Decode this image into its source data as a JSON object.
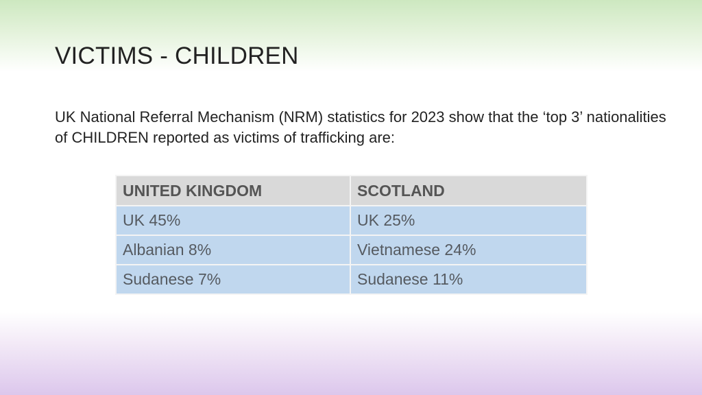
{
  "slide": {
    "title": "VICTIMS - CHILDREN",
    "body": "UK National Referral Mechanism (NRM) statistics for 2023 show that the ‘top 3’ nationalities of CHILDREN reported as victims of trafficking are:"
  },
  "table": {
    "headers": [
      "UNITED KINGDOM",
      "SCOTLAND"
    ],
    "rows": [
      [
        "UK 45%",
        "UK 25%"
      ],
      [
        "Albanian 8%",
        "Vietnamese 24%"
      ],
      [
        "Sudanese 7%",
        "Sudanese 11%"
      ]
    ]
  },
  "colors": {
    "header_bg": "#d9d9d9",
    "cell_bg": "#c0d7ee",
    "gradient_top": "#cde8c0",
    "gradient_bottom": "#dcc7ec"
  }
}
